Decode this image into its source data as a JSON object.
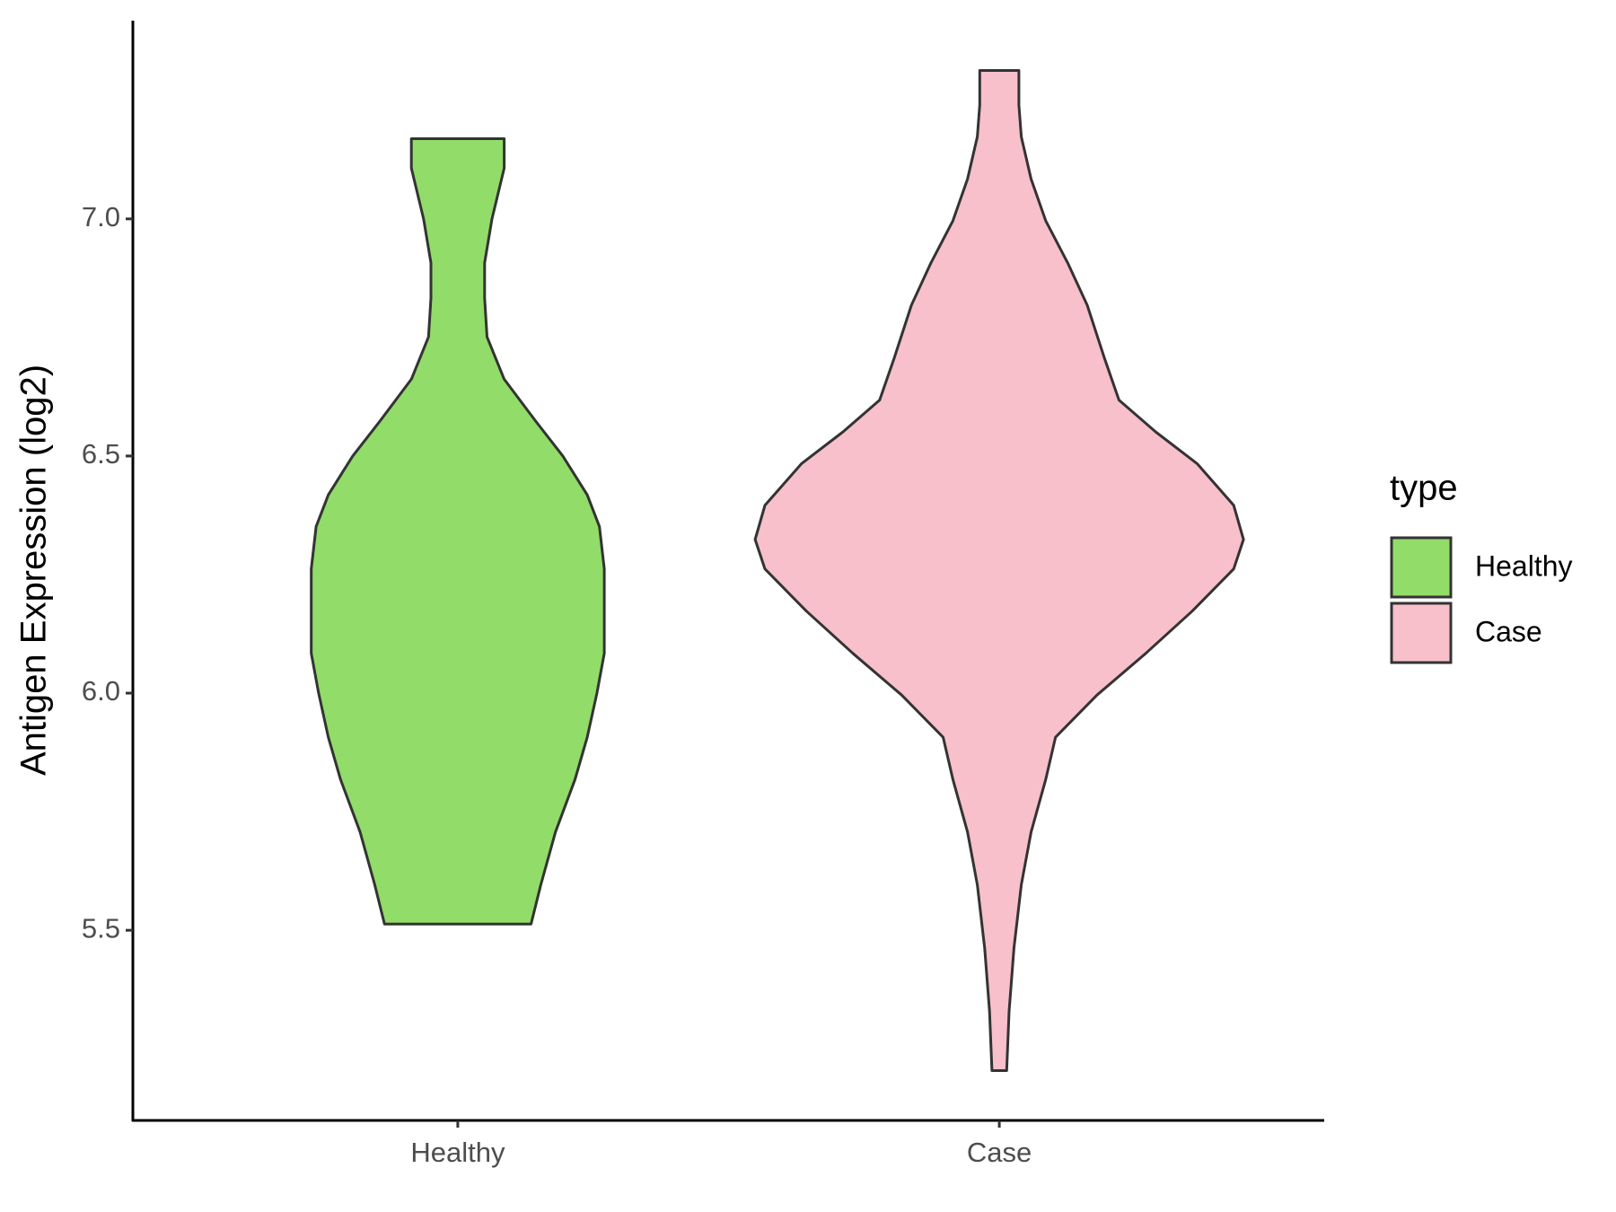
{
  "chart_data": {
    "type": "violin",
    "y_label": "Antigen Expression (log2)",
    "categories": [
      "Healthy",
      "Case"
    ],
    "ylim": [
      5.099,
      7.418
    ],
    "yticks": [
      {
        "value": 5.5,
        "label": "5.5"
      },
      {
        "value": 6,
        "label": "6.0"
      },
      {
        "value": 6.5,
        "label": "6.5"
      },
      {
        "value": 7,
        "label": "7.0"
      }
    ],
    "legend_title": "type",
    "legend_position": "right",
    "series": [
      {
        "name": "Healthy",
        "color": "#92dc6a",
        "y": [
          7.169,
          7.107,
          7.0,
          6.907,
          6.833,
          6.751,
          6.662,
          6.573,
          6.5,
          6.418,
          6.351,
          6.262,
          6.167,
          6.084,
          6.0,
          5.907,
          5.818,
          5.707,
          5.596,
          5.513
        ],
        "density": [
          0.19,
          0.19,
          0.14,
          0.11,
          0.11,
          0.12,
          0.19,
          0.32,
          0.43,
          0.53,
          0.58,
          0.6,
          0.6,
          0.6,
          0.57,
          0.53,
          0.48,
          0.4,
          0.34,
          0.3
        ]
      },
      {
        "name": "Case",
        "color": "#f7c0cb",
        "y": [
          7.313,
          7.24,
          7.173,
          7.084,
          6.996,
          6.907,
          6.818,
          6.707,
          6.618,
          6.551,
          6.484,
          6.396,
          6.324,
          6.262,
          6.173,
          6.084,
          5.996,
          5.907,
          5.818,
          5.707,
          5.596,
          5.462,
          5.329,
          5.204
        ],
        "density": [
          0.08,
          0.08,
          0.09,
          0.13,
          0.19,
          0.28,
          0.36,
          0.43,
          0.49,
          0.64,
          0.81,
          0.96,
          1.0,
          0.96,
          0.79,
          0.6,
          0.4,
          0.23,
          0.19,
          0.13,
          0.09,
          0.06,
          0.04,
          0.03
        ]
      }
    ]
  }
}
